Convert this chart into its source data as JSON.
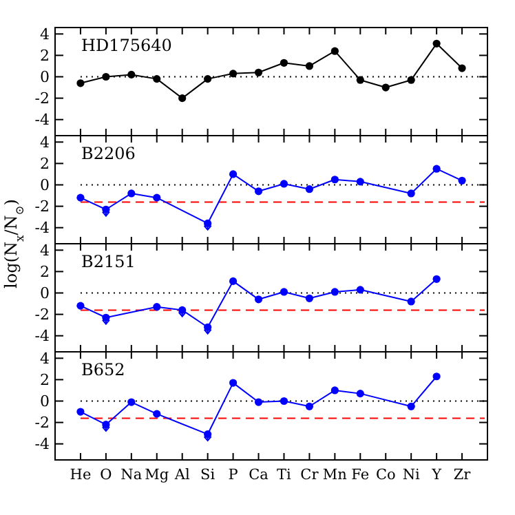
{
  "chart_data": [
    {
      "type": "line",
      "title": "HD175640",
      "ylabel": "log(N$_{x}$/N$_{⊙}$)",
      "categories": [
        null,
        null,
        null,
        null,
        null,
        null,
        null,
        null,
        null,
        null,
        null,
        null,
        null,
        null,
        null,
        null
      ],
      "series": [
        {
          "color": "#000000",
          "values": [
            -0.6,
            0,
            0.2,
            -0.2,
            -2.0,
            -0.2,
            0.3,
            0.4,
            1.3,
            1.0,
            2.4,
            -0.3,
            -1.0,
            -0.3,
            3.1,
            0.8
          ]
        }
      ],
      "ylim": [
        -5.5,
        4.6
      ],
      "yticks": [
        -4,
        -2,
        0,
        2,
        4
      ],
      "marker": "circle",
      "ref_lines": [
        {
          "axis": "y",
          "value": 0,
          "color": "#000000",
          "line_style": "dotted"
        }
      ],
      "tick_labels": "y"
    },
    {
      "type": "line",
      "title": "B2206",
      "categories": [
        null,
        null,
        null,
        null,
        null,
        null,
        null,
        null,
        null,
        null,
        null,
        null,
        null,
        null,
        null,
        null
      ],
      "series": [
        {
          "color": "#0000ff",
          "values": [
            -1.2,
            -2.3,
            -0.8,
            -1.2,
            null,
            -3.6,
            1.0,
            -0.6,
            0.1,
            -0.4,
            0.5,
            0.3,
            null,
            -0.8,
            1.5,
            0.4
          ],
          "errors": [
            null,
            [
              -2.9,
              -2.3
            ],
            null,
            null,
            null,
            [
              -4.2,
              -3.6
            ],
            null,
            null,
            null,
            null,
            null,
            null,
            null,
            null,
            null,
            null
          ]
        }
      ],
      "ylim": [
        -5.5,
        4.6
      ],
      "yticks": [
        -4,
        -2,
        0,
        2,
        4
      ],
      "marker": "circle",
      "ref_lines": [
        {
          "axis": "y",
          "value": 0,
          "color": "#000000",
          "line_style": "dotted"
        },
        {
          "axis": "y",
          "value": -1.6,
          "color": "#ff0000",
          "line_style": "dashed"
        }
      ],
      "tick_labels": "y"
    },
    {
      "type": "line",
      "title": "B2151",
      "categories": [
        null,
        null,
        null,
        null,
        null,
        null,
        null,
        null,
        null,
        null,
        null,
        null,
        null,
        null,
        null,
        null
      ],
      "series": [
        {
          "color": "#0000ff",
          "values": [
            -1.2,
            -2.3,
            null,
            -1.3,
            -1.6,
            -3.2,
            1.1,
            -0.6,
            0.1,
            -0.5,
            0.1,
            0.3,
            null,
            -0.8,
            1.3,
            null
          ],
          "errors": [
            null,
            [
              -2.9,
              -2.3
            ],
            null,
            null,
            [
              -2.2,
              -1.6
            ],
            [
              -3.8,
              -3.2
            ],
            null,
            null,
            null,
            null,
            null,
            null,
            null,
            null,
            null,
            null
          ]
        }
      ],
      "ylim": [
        -5.5,
        4.6
      ],
      "yticks": [
        -4,
        -2,
        0,
        2,
        4
      ],
      "marker": "circle",
      "ref_lines": [
        {
          "axis": "y",
          "value": 0,
          "color": "#000000",
          "line_style": "dotted"
        },
        {
          "axis": "y",
          "value": -1.6,
          "color": "#ff0000",
          "line_style": "dashed"
        }
      ],
      "tick_labels": "y"
    },
    {
      "type": "line",
      "title": "B652",
      "categories": [
        "He",
        "O",
        "Na",
        "Mg",
        "Al",
        "Si",
        "P",
        "Ca",
        "Ti",
        "Cr",
        "Mn",
        "Fe",
        "Co",
        "Ni",
        "Y",
        "Zr"
      ],
      "series": [
        {
          "color": "#0000ff",
          "values": [
            -1.0,
            -2.2,
            -0.1,
            -1.2,
            null,
            -3.1,
            1.7,
            -0.1,
            0.0,
            -0.5,
            1.0,
            0.7,
            null,
            -0.5,
            2.3,
            null
          ],
          "errors": [
            null,
            [
              -2.8,
              -2.2
            ],
            null,
            null,
            null,
            [
              -3.7,
              -3.1
            ],
            null,
            null,
            null,
            null,
            null,
            null,
            null,
            null,
            null,
            null
          ]
        }
      ],
      "ylim": [
        -5.5,
        4.6
      ],
      "yticks": [
        -4,
        -2,
        0,
        2,
        4
      ],
      "marker": "circle",
      "ref_lines": [
        {
          "axis": "y",
          "value": 0,
          "color": "#000000",
          "line_style": "dotted"
        },
        {
          "axis": "y",
          "value": -1.6,
          "color": "#ff0000",
          "line_style": "dashed"
        }
      ]
    }
  ]
}
